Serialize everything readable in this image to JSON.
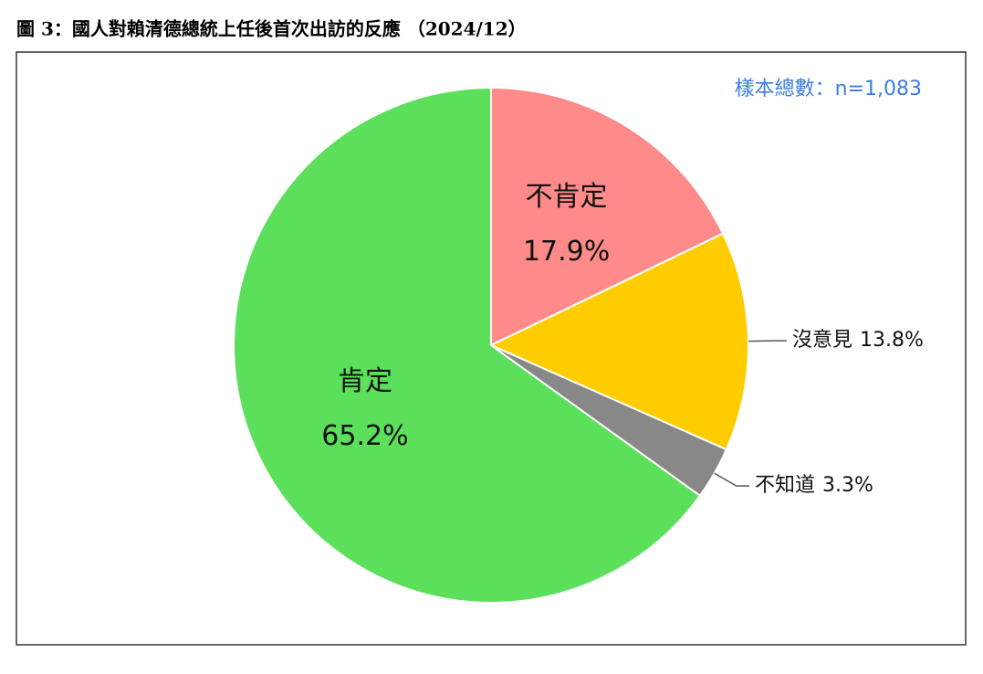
{
  "chart_data": {
    "type": "pie",
    "title": "圖 3：國人對賴清德總統上任後首次出訪的反應 （2024/12）",
    "annotation": "樣本總數：n=1,083",
    "categories": [
      "不肯定",
      "沒意見",
      "不知道",
      "肯定"
    ],
    "values": [
      17.9,
      13.8,
      3.3,
      65.2
    ],
    "value_labels": [
      "17.9%",
      "13.8%",
      "3.3%",
      "65.2%"
    ],
    "colors": [
      "#ff8a8a",
      "#ffcc00",
      "#888888",
      "#5ce05c"
    ]
  }
}
